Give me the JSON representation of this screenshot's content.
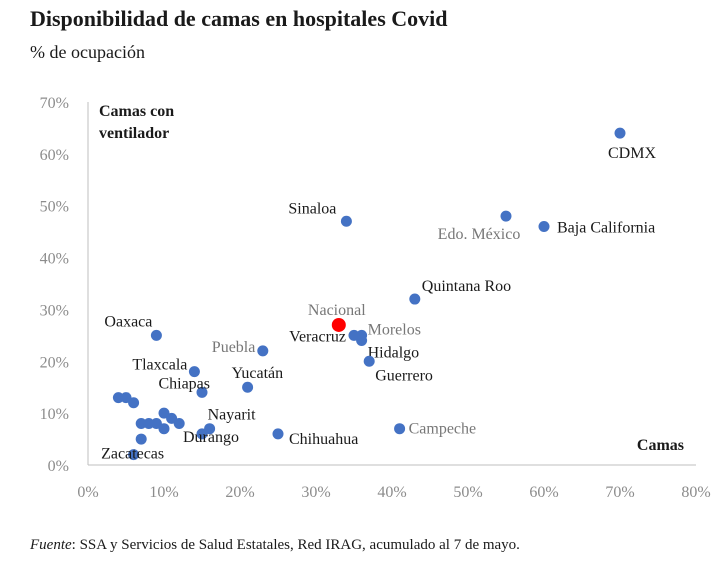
{
  "title": "Disponibilidad de camas en hospitales Covid",
  "subtitle": "% de ocupación",
  "source": {
    "label": "Fuente",
    "text": ": SSA y Servicios de Salud Estatales, Red IRAG, acumulado al 7 de mayo."
  },
  "colors": {
    "point": "#4472C4",
    "highlight": "#FF0000",
    "axis": "#bfbfbf",
    "tick": "#8c8c8c"
  },
  "chart_data": {
    "type": "scatter",
    "xlabel": "Camas",
    "ylabel": "Camas con ventilador",
    "xlim": [
      0,
      80
    ],
    "ylim": [
      0,
      70
    ],
    "xticks": [
      "0%",
      "10%",
      "20%",
      "30%",
      "40%",
      "50%",
      "60%",
      "70%",
      "80%"
    ],
    "yticks": [
      "0%",
      "10%",
      "20%",
      "30%",
      "40%",
      "50%",
      "60%",
      "70%"
    ],
    "grid": false,
    "series": [
      {
        "points": [
          {
            "x": 70,
            "y": 64,
            "label": "CDMX"
          },
          {
            "x": 34,
            "y": 47,
            "label": "Sinaloa"
          },
          {
            "x": 55,
            "y": 48,
            "label": "Edo. México"
          },
          {
            "x": 60,
            "y": 46,
            "label": "Baja California"
          },
          {
            "x": 43,
            "y": 32,
            "label": "Quintana Roo"
          },
          {
            "x": 9,
            "y": 25,
            "label": "Oaxaca"
          },
          {
            "x": 23,
            "y": 22,
            "label": "Puebla"
          },
          {
            "x": 35,
            "y": 25,
            "label": "Veracruz"
          },
          {
            "x": 36,
            "y": 25,
            "label": "Morelos"
          },
          {
            "x": 36,
            "y": 24,
            "label": "Hidalgo"
          },
          {
            "x": 37,
            "y": 20,
            "label": "Guerrero"
          },
          {
            "x": 14,
            "y": 18,
            "label": "Tlaxcala"
          },
          {
            "x": 15,
            "y": 14,
            "label": "Chiapas"
          },
          {
            "x": 21,
            "y": 15,
            "label": "Yucatán"
          },
          {
            "x": 16,
            "y": 7,
            "label": "Nayarit"
          },
          {
            "x": 15,
            "y": 6,
            "label": "Durango"
          },
          {
            "x": 25,
            "y": 6,
            "label": "Chihuahua"
          },
          {
            "x": 41,
            "y": 7,
            "label": "Campeche"
          },
          {
            "x": 6,
            "y": 2,
            "label": "Zacatecas"
          },
          {
            "x": 4,
            "y": 13,
            "label": ""
          },
          {
            "x": 5,
            "y": 13,
            "label": ""
          },
          {
            "x": 6,
            "y": 12,
            "label": ""
          },
          {
            "x": 7,
            "y": 8,
            "label": ""
          },
          {
            "x": 8,
            "y": 8,
            "label": ""
          },
          {
            "x": 9,
            "y": 8,
            "label": ""
          },
          {
            "x": 10,
            "y": 7,
            "label": ""
          },
          {
            "x": 10,
            "y": 10,
            "label": ""
          },
          {
            "x": 11,
            "y": 9,
            "label": ""
          },
          {
            "x": 12,
            "y": 8,
            "label": ""
          },
          {
            "x": 7,
            "y": 5,
            "label": ""
          }
        ]
      },
      {
        "points": [
          {
            "x": 33,
            "y": 27,
            "label": "Nacional"
          }
        ]
      }
    ]
  }
}
